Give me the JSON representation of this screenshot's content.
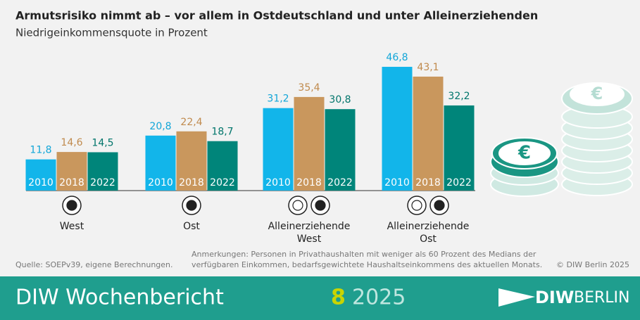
{
  "chart_data": {
    "type": "bar",
    "title": "Armutsrisiko nimmt ab – vor allem in Ostdeutschland und unter Alleinerziehenden",
    "subtitle": "Niedrigeinkommensquote in Prozent",
    "categories": [
      "West",
      "Ost",
      "Alleinerziehende West",
      "Alleinerziehende Ost"
    ],
    "series": [
      {
        "name": "2010",
        "color": "#12b5ea",
        "label_color": "#12a6d8",
        "values": [
          11.8,
          20.8,
          31.2,
          46.8
        ],
        "value_labels": [
          "11,8",
          "20,8",
          "31,2",
          "46,8"
        ]
      },
      {
        "name": "2018",
        "color": "#c9975d",
        "label_color": "#c08a4d",
        "values": [
          14.6,
          22.4,
          35.4,
          43.1
        ],
        "value_labels": [
          "14,6",
          "22,4",
          "35,4",
          "43,1"
        ]
      },
      {
        "name": "2022",
        "color": "#00857a",
        "label_color": "#00756b",
        "values": [
          14.5,
          18.7,
          30.8,
          32.2
        ],
        "value_labels": [
          "14,5",
          "18,7",
          "30,8",
          "32,2"
        ]
      }
    ]
  },
  "source": "Quelle: SOEPv39, eigene Berechnungen.",
  "note": "Anmerkungen: Personen in Privathaushalten mit weniger als 60 Prozent des Medians der verfügbaren Einkommen, bedarfsgewichtete Haushaltseinkommens des aktuellen Monats.",
  "copyright": "© DIW Berlin 2025",
  "footer": {
    "publication": "DIW Wochenbericht",
    "issue": "8",
    "year": "2025",
    "logo_left": "DIW",
    "logo_right": "BERLIN"
  }
}
